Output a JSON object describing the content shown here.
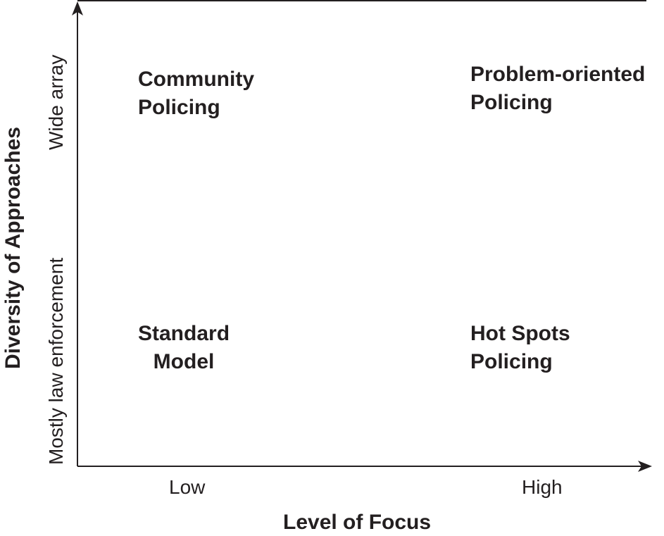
{
  "x_axis": {
    "title": "Level of Focus",
    "ticks": [
      "Low",
      "High"
    ]
  },
  "y_axis": {
    "title": "Diversity of Approaches",
    "ticks": [
      "Mostly law enforcement",
      "Wide array"
    ]
  },
  "quadrants": {
    "top_left": [
      "Community",
      "Policing"
    ],
    "top_right": [
      "Problem-oriented",
      "Policing"
    ],
    "bottom_left": [
      "Standard",
      "Model"
    ],
    "bottom_right": [
      "Hot Spots",
      "Policing"
    ]
  }
}
